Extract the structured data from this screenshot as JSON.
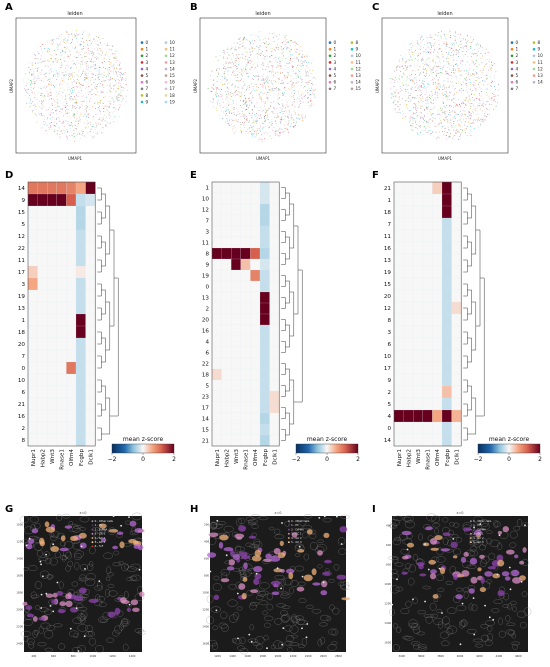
{
  "panels": {
    "A": "A",
    "B": "B",
    "C": "C",
    "D": "D",
    "E": "E",
    "F": "F",
    "G": "G",
    "H": "H",
    "I": "I"
  },
  "umap": [
    {
      "title": "leiden",
      "xlabel": "UMAP1",
      "ylabel": "UMAP2",
      "legend": [
        "0",
        "1",
        "2",
        "3",
        "4",
        "5",
        "6",
        "7",
        "8",
        "9",
        "10",
        "11",
        "12",
        "13",
        "14",
        "15",
        "16",
        "17",
        "18",
        "19"
      ]
    },
    {
      "title": "leiden",
      "xlabel": "UMAP1",
      "ylabel": "UMAP2",
      "legend": [
        "0",
        "1",
        "2",
        "3",
        "4",
        "5",
        "6",
        "7",
        "8",
        "9",
        "10",
        "11",
        "12",
        "13",
        "14",
        "15"
      ]
    },
    {
      "title": "leiden",
      "xlabel": "UMAP1",
      "ylabel": "UMAP2",
      "legend": [
        "0",
        "1",
        "2",
        "3",
        "4",
        "5",
        "6",
        "7",
        "8",
        "9",
        "10",
        "11",
        "12",
        "13",
        "14"
      ]
    }
  ],
  "colors": {
    "cluster_palette": [
      "#1f77b4",
      "#ff7f0e",
      "#2ca02c",
      "#d62728",
      "#9467bd",
      "#8c564b",
      "#e377c2",
      "#7f7f7f",
      "#bcbd22",
      "#17becf",
      "#aec7e8",
      "#ffbb78",
      "#98df8a",
      "#ff9896",
      "#c5b0d5",
      "#c49c94",
      "#f7b6d2",
      "#c7c7c7",
      "#dbdb8d",
      "#9edae5"
    ],
    "cmap_low": "#053061",
    "cmap_mid": "#f7f7f7",
    "cmap_high": "#67001f"
  },
  "chart_data": [
    {
      "type": "heatmap",
      "panel": "D",
      "columns": [
        "Nupr1",
        "Habp2",
        "Wnt3",
        "Rnase1",
        "Olfm4",
        "Fcgbp",
        "Dclk1"
      ],
      "rows": [
        "14",
        "9",
        "15",
        "5",
        "12",
        "22",
        "11",
        "17",
        "3",
        "19",
        "13",
        "1",
        "18",
        "20",
        "7",
        "0",
        "10",
        "6",
        "21",
        "16",
        "2",
        "8"
      ],
      "values": [
        [
          1.0,
          1.0,
          1.0,
          1.0,
          0.9,
          0.6,
          2.5
        ],
        [
          2.3,
          2.3,
          2.3,
          2.3,
          1.2,
          -0.3,
          -0.2
        ],
        [
          0,
          0,
          0,
          0,
          0,
          -0.4,
          0
        ],
        [
          0,
          0,
          0,
          0,
          0,
          -0.4,
          0
        ],
        [
          0,
          0,
          0,
          0,
          0,
          -0.3,
          0
        ],
        [
          0,
          0,
          0,
          0,
          0,
          -0.3,
          0
        ],
        [
          0,
          0,
          0,
          0,
          0,
          -0.3,
          0
        ],
        [
          0.3,
          0,
          0,
          0,
          0,
          0.1,
          0
        ],
        [
          0.6,
          0,
          0,
          0,
          0,
          -0.3,
          0
        ],
        [
          0,
          0,
          0,
          0,
          0,
          -0.3,
          0
        ],
        [
          0,
          0,
          0,
          0,
          0,
          -0.3,
          0
        ],
        [
          0,
          0,
          0,
          0,
          0,
          2.4,
          0
        ],
        [
          0,
          0,
          0,
          0,
          0,
          2.4,
          0
        ],
        [
          0,
          0,
          0,
          0,
          0,
          -0.3,
          0
        ],
        [
          0,
          0,
          0,
          0,
          0,
          -0.3,
          0
        ],
        [
          0,
          0,
          0,
          0,
          1.0,
          -0.3,
          0
        ],
        [
          0,
          0,
          0,
          0,
          0,
          -0.3,
          0
        ],
        [
          0,
          0,
          0,
          0,
          0,
          -0.3,
          0
        ],
        [
          0,
          0,
          0,
          0,
          0,
          -0.3,
          0
        ],
        [
          0,
          0,
          0,
          0,
          0,
          -0.3,
          0
        ],
        [
          0,
          0,
          0,
          0,
          0,
          -0.3,
          0
        ],
        [
          0,
          0,
          0,
          0,
          0,
          -0.3,
          0
        ]
      ],
      "colorbar": {
        "title": "mean z-score",
        "ticks": [
          "−2",
          "0",
          "2"
        ],
        "range": [
          -2,
          2
        ]
      }
    },
    {
      "type": "heatmap",
      "panel": "E",
      "columns": [
        "Nupr1",
        "Habp2",
        "Wnt3",
        "Rnase1",
        "Olfm4",
        "Fcgbp",
        "Dclk1"
      ],
      "rows": [
        "1",
        "10",
        "12",
        "7",
        "3",
        "11",
        "8",
        "9",
        "19",
        "0",
        "13",
        "2",
        "20",
        "16",
        "4",
        "6",
        "22",
        "18",
        "5",
        "23",
        "17",
        "14",
        "15",
        "21"
      ],
      "values": [
        [
          0,
          0,
          0,
          0,
          0,
          -0.2,
          0
        ],
        [
          0,
          0,
          0,
          0,
          0,
          -0.2,
          0
        ],
        [
          0,
          0,
          0,
          0,
          0,
          -0.4,
          0
        ],
        [
          0,
          0,
          0,
          0,
          0,
          -0.4,
          0
        ],
        [
          0,
          0,
          0,
          0,
          0,
          -0.3,
          0
        ],
        [
          0,
          0,
          0,
          0,
          0,
          -0.3,
          0
        ],
        [
          2.3,
          2.2,
          2.3,
          2.0,
          1.2,
          -0.4,
          0
        ],
        [
          0,
          0,
          2.5,
          0.4,
          0,
          -0.2,
          0
        ],
        [
          0,
          0,
          0,
          0,
          0.9,
          -0.3,
          0
        ],
        [
          0,
          0,
          0,
          0,
          0,
          -0.3,
          0
        ],
        [
          0,
          0,
          0,
          0,
          0,
          2.4,
          0
        ],
        [
          0,
          0,
          0,
          0,
          0,
          2.5,
          0
        ],
        [
          0,
          0,
          0,
          0,
          0,
          2.2,
          0
        ],
        [
          0,
          0,
          0,
          0,
          0,
          -0.3,
          0
        ],
        [
          0,
          0,
          0,
          0,
          0,
          -0.3,
          0
        ],
        [
          0,
          0,
          0,
          0,
          0,
          -0.3,
          0
        ],
        [
          0,
          0,
          0,
          0,
          0,
          -0.3,
          0
        ],
        [
          0.2,
          0,
          0,
          0,
          0,
          -0.3,
          0
        ],
        [
          0,
          0,
          0,
          0,
          0,
          -0.3,
          0
        ],
        [
          0,
          0,
          0,
          0,
          0,
          -0.3,
          0.2
        ],
        [
          0,
          0,
          0,
          0,
          0,
          -0.3,
          0.2
        ],
        [
          0,
          0,
          0,
          0,
          0,
          -0.4,
          0
        ],
        [
          0,
          0,
          0,
          0,
          0,
          -0.3,
          0
        ],
        [
          0,
          0,
          0,
          0,
          0,
          -0.4,
          0
        ]
      ],
      "colorbar": {
        "title": "mean z-score",
        "ticks": [
          "−2",
          "0",
          "2"
        ],
        "range": [
          -2,
          2
        ]
      }
    },
    {
      "type": "heatmap",
      "panel": "F",
      "columns": [
        "Nupr1",
        "Habp2",
        "Wnt3",
        "Rnase1",
        "Olfm4",
        "Fcgbp",
        "Dclk1"
      ],
      "rows": [
        "21",
        "1",
        "18",
        "7",
        "11",
        "16",
        "13",
        "19",
        "15",
        "20",
        "12",
        "8",
        "3",
        "6",
        "10",
        "17",
        "9",
        "2",
        "5",
        "4",
        "0",
        "14"
      ],
      "values": [
        [
          0,
          0,
          0,
          0,
          0.3,
          2.5,
          0
        ],
        [
          0,
          0,
          0,
          0,
          0,
          2.4,
          0
        ],
        [
          0,
          0,
          0,
          0,
          0,
          2.4,
          0
        ],
        [
          0,
          0,
          0,
          0,
          0,
          -0.3,
          0
        ],
        [
          0,
          0,
          0,
          0,
          0,
          -0.3,
          0
        ],
        [
          0,
          0,
          0,
          0,
          0,
          -0.3,
          0
        ],
        [
          0,
          0,
          0,
          0,
          0,
          -0.3,
          0
        ],
        [
          0,
          0,
          0,
          0,
          0,
          -0.3,
          0
        ],
        [
          0,
          0,
          0,
          0,
          0,
          -0.3,
          0
        ],
        [
          0,
          0,
          0,
          0,
          0,
          -0.3,
          0
        ],
        [
          0,
          0,
          0,
          0,
          0,
          -0.3,
          0.2
        ],
        [
          0,
          0,
          0,
          0,
          0,
          -0.3,
          0
        ],
        [
          0,
          0,
          0,
          0,
          0,
          -0.3,
          0
        ],
        [
          0,
          0,
          0,
          0,
          0,
          -0.3,
          0
        ],
        [
          0,
          0,
          0,
          0,
          0,
          -0.3,
          0
        ],
        [
          0,
          0,
          0,
          0,
          0,
          -0.3,
          0
        ],
        [
          0,
          0,
          0,
          0,
          0,
          -0.3,
          0
        ],
        [
          0,
          0,
          0,
          0,
          0,
          0.4,
          0
        ],
        [
          0,
          0,
          0,
          0,
          0,
          -0.3,
          0
        ],
        [
          2.3,
          2.3,
          2.3,
          2.2,
          0.6,
          2.4,
          0.5
        ],
        [
          0,
          0,
          0,
          0,
          0,
          -0.3,
          0
        ],
        [
          0,
          0,
          0,
          0,
          0,
          -0.3,
          0
        ]
      ],
      "colorbar": {
        "title": "mean z-score",
        "ticks": [
          "−2",
          "0",
          "2"
        ],
        "range": [
          -2,
          2
        ]
      }
    }
  ],
  "spatial": [
    {
      "title": "z=0",
      "legend": [
        "0 - Other cells",
        "1 - PC",
        "2 - D/PMA",
        "3 - GC 1",
        "4 - GC 2",
        "5 - GC 3",
        "6 - TuF"
      ],
      "xticks": [
        "400",
        "600",
        "800",
        "1000",
        "1200",
        "1400"
      ],
      "yticks": [
        "1000",
        "1200",
        "1400",
        "1600",
        "1800",
        "2000",
        "2200",
        "2400"
      ]
    },
    {
      "title": "z=0",
      "legend": [
        "0 - Other cells",
        "1 - PC",
        "2 - D/PMA",
        "3 - GC 1",
        "4 - GC 2",
        "5 - GC 3"
      ],
      "xticks": [
        "1200",
        "1400",
        "1600",
        "1800",
        "2000",
        "2200",
        "2400",
        "2600",
        "2800"
      ],
      "yticks": [
        "200",
        "400",
        "600",
        "800",
        "1000",
        "1200",
        "1400",
        "1600"
      ]
    },
    {
      "title": "z=0",
      "legend": [
        "0 - Other cells",
        "1 - PC",
        "2 - D/PMA",
        "3 - GC 1",
        "4 - GC 2",
        "5 - GC 3"
      ],
      "xticks": [
        "3400",
        "3600",
        "3800",
        "4000",
        "4200",
        "4400",
        "4600"
      ],
      "yticks": [
        "400",
        "600",
        "800",
        "1000",
        "1200",
        "1400",
        "1600"
      ]
    }
  ]
}
